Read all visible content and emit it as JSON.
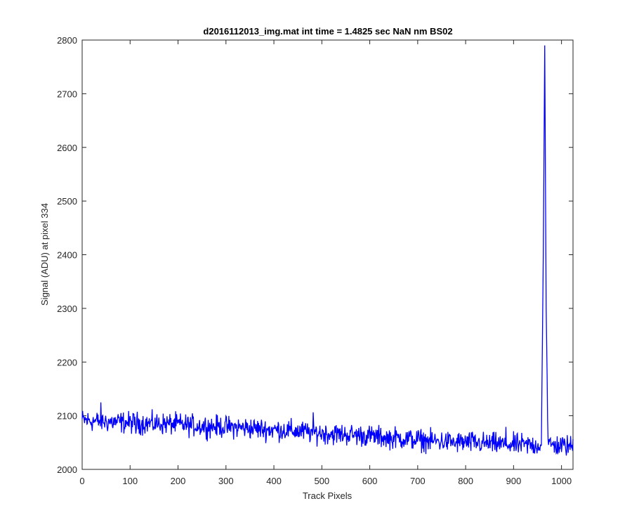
{
  "chart_data": {
    "type": "line",
    "title": "d2016112013_img.mat int time = 1.4825 sec  NaN nm BS02",
    "xlabel": "Track Pixels",
    "ylabel": "Signal (ADU) at pixel 334",
    "xlim": [
      0,
      1024
    ],
    "ylim": [
      2000,
      2800
    ],
    "xticks": [
      0,
      100,
      200,
      300,
      400,
      500,
      600,
      700,
      800,
      900,
      1000
    ],
    "yticks": [
      2000,
      2100,
      2200,
      2300,
      2400,
      2500,
      2600,
      2700,
      2800
    ],
    "grid": false,
    "line_color": "#0000ff",
    "series": [
      {
        "x": [
          0,
          25,
          50,
          75,
          100,
          125,
          150,
          175,
          200,
          225,
          250,
          275,
          300,
          325,
          350,
          375,
          400,
          425,
          450,
          475,
          500,
          525,
          550,
          575,
          600,
          625,
          650,
          675,
          700,
          725,
          750,
          775,
          800,
          825,
          850,
          875,
          900,
          925,
          950,
          958,
          962,
          965,
          968,
          972,
          980,
          1000,
          1024
        ],
        "y": [
          2092,
          2090,
          2089,
          2088,
          2087,
          2086,
          2085,
          2085,
          2084,
          2082,
          2081,
          2080,
          2079,
          2078,
          2077,
          2075,
          2074,
          2073,
          2071,
          2069,
          2068,
          2066,
          2065,
          2064,
          2062,
          2060,
          2059,
          2057,
          2055,
          2053,
          2052,
          2051,
          2050,
          2049,
          2048,
          2047,
          2046,
          2046,
          2045,
          2046,
          2400,
          2790,
          2300,
          2046,
          2045,
          2044,
          2043
        ]
      }
    ]
  }
}
